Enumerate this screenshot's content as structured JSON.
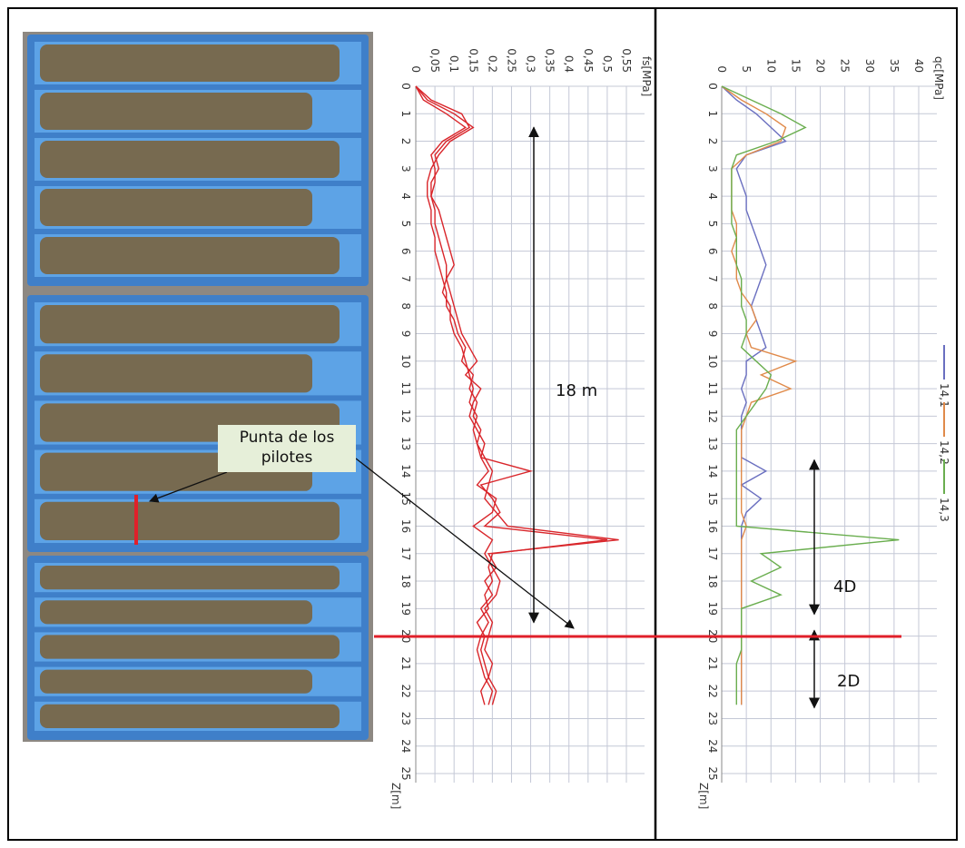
{
  "chart_data": [
    {
      "type": "line",
      "y_label": "fs[MPa]",
      "x_label": "Z[m]",
      "x": [
        0,
        0.5,
        1,
        1.5,
        2,
        2.5,
        3,
        3.5,
        4,
        4.5,
        5,
        5.5,
        6,
        6.5,
        7,
        7.5,
        8,
        8.5,
        9,
        9.5,
        10,
        10.5,
        11,
        11.5,
        12,
        12.5,
        13,
        13.5,
        14,
        14.5,
        15,
        15.5,
        16,
        16.5,
        17,
        17.5,
        18,
        18.5,
        19,
        19.5,
        20,
        20.5,
        21,
        21.5,
        22,
        22.5
      ],
      "xlim": [
        0,
        25
      ],
      "xticks": [
        0,
        1,
        2,
        3,
        4,
        5,
        6,
        7,
        8,
        9,
        10,
        11,
        12,
        13,
        14,
        15,
        16,
        17,
        18,
        19,
        20,
        21,
        22,
        23,
        24,
        25
      ],
      "ylim": [
        0,
        0.55
      ],
      "yticks": [
        0,
        {
          "value": 0.05,
          "label": "0,05"
        },
        {
          "value": 0.1,
          "label": "0,1"
        },
        {
          "value": 0.15,
          "label": "0,15"
        },
        {
          "value": 0.2,
          "label": "0,2"
        },
        {
          "value": 0.25,
          "label": "0,25"
        },
        {
          "value": 0.3,
          "label": "0,3"
        },
        {
          "value": 0.35,
          "label": "0,35"
        },
        {
          "value": 0.4,
          "label": "0,4"
        },
        {
          "value": 0.45,
          "label": "0,45"
        },
        {
          "value": 0.5,
          "label": "0,5"
        },
        {
          "value": 0.55,
          "label": "0,55"
        }
      ],
      "grid": true,
      "series": [
        {
          "color": "#d9262b",
          "values": [
            0,
            0.02,
            0.08,
            0.13,
            0.07,
            0.04,
            0.05,
            0.05,
            0.04,
            0.05,
            0.05,
            0.06,
            0.07,
            0.08,
            0.08,
            0.07,
            0.09,
            0.09,
            0.1,
            0.12,
            0.13,
            0.14,
            0.15,
            0.14,
            0.16,
            0.15,
            0.16,
            0.17,
            0.3,
            0.17,
            0.2,
            0.22,
            0.18,
            0.5,
            0.2,
            0.19,
            0.2,
            0.18,
            0.19,
            0.16,
            0.18,
            0.17,
            0.18,
            0.19,
            0.17,
            0.18
          ]
        },
        {
          "color": "#d9262b",
          "values": [
            0,
            0.03,
            0.1,
            0.15,
            0.09,
            0.06,
            0.04,
            0.03,
            0.03,
            0.04,
            0.04,
            0.05,
            0.05,
            0.06,
            0.07,
            0.08,
            0.08,
            0.1,
            0.11,
            0.13,
            0.12,
            0.15,
            0.14,
            0.16,
            0.15,
            0.17,
            0.16,
            0.18,
            0.2,
            0.19,
            0.18,
            0.21,
            0.24,
            0.53,
            0.19,
            0.21,
            0.18,
            0.2,
            0.17,
            0.19,
            0.17,
            0.16,
            0.17,
            0.18,
            0.2,
            0.19
          ]
        },
        {
          "color": "#d9262b",
          "values": [
            0,
            0.04,
            0.12,
            0.14,
            0.08,
            0.05,
            0.06,
            0.04,
            0.04,
            0.06,
            0.07,
            0.08,
            0.09,
            0.1,
            0.08,
            0.09,
            0.1,
            0.11,
            0.12,
            0.14,
            0.16,
            0.13,
            0.17,
            0.15,
            0.14,
            0.16,
            0.18,
            0.17,
            0.19,
            0.16,
            0.21,
            0.2,
            0.15,
            0.2,
            0.18,
            0.2,
            0.22,
            0.21,
            0.18,
            0.2,
            0.19,
            0.18,
            0.2,
            0.19,
            0.21,
            0.2
          ]
        }
      ],
      "annotations": [
        "18 m",
        "Punta de los pilotes"
      ]
    },
    {
      "type": "line",
      "y_label": "qc[MPa]",
      "x_label": "Z[m]",
      "x": [
        0,
        0.5,
        1,
        1.5,
        2,
        2.5,
        3,
        3.5,
        4,
        4.5,
        5,
        5.5,
        6,
        6.5,
        7,
        7.5,
        8,
        8.5,
        9,
        9.5,
        10,
        10.5,
        11,
        11.5,
        12,
        12.5,
        13,
        13.5,
        14,
        14.5,
        15,
        15.5,
        16,
        16.5,
        17,
        17.5,
        18,
        18.5,
        19,
        19.5,
        20,
        20.5,
        21,
        21.5,
        22,
        22.5
      ],
      "xlim": [
        0,
        25
      ],
      "xticks": [
        0,
        1,
        2,
        3,
        4,
        5,
        6,
        7,
        8,
        9,
        10,
        11,
        12,
        13,
        14,
        15,
        16,
        17,
        18,
        19,
        20,
        21,
        22,
        23,
        24,
        25
      ],
      "ylim": [
        0,
        40
      ],
      "yticks": [
        0,
        5,
        10,
        15,
        20,
        25,
        30,
        35,
        40
      ],
      "grid": true,
      "series": [
        {
          "name": "14,1",
          "color": "#6a6fc0",
          "values": [
            0,
            3,
            7,
            10,
            13,
            5,
            3,
            4,
            5,
            5,
            6,
            7,
            8,
            9,
            8,
            7,
            6,
            7,
            8,
            9,
            5,
            5,
            4,
            5,
            4,
            4,
            4,
            4,
            9,
            4,
            8,
            5,
            4,
            4,
            4,
            4,
            4,
            4,
            4,
            4,
            4,
            4,
            4,
            4,
            4,
            4
          ]
        },
        {
          "name": "14,2",
          "color": "#e08a4a",
          "values": [
            0,
            4,
            9,
            13,
            12,
            5,
            2,
            2,
            2,
            2,
            3,
            3,
            2,
            3,
            3,
            4,
            6,
            7,
            5,
            6,
            15,
            8,
            14,
            6,
            5,
            4,
            4,
            4,
            4,
            4,
            4,
            4,
            5,
            4,
            4,
            4,
            4,
            4,
            4,
            4,
            4,
            4,
            4,
            4,
            4,
            4
          ]
        },
        {
          "name": "14,3",
          "color": "#6aae4f",
          "values": [
            0,
            6,
            12,
            17,
            11,
            3,
            2,
            2,
            2,
            2,
            2,
            3,
            3,
            3,
            4,
            4,
            4,
            5,
            5,
            4,
            7,
            10,
            9,
            7,
            5,
            3,
            3,
            3,
            3,
            3,
            3,
            3,
            3,
            36,
            8,
            12,
            6,
            12,
            4,
            4,
            4,
            4,
            3,
            3,
            3,
            3
          ]
        }
      ],
      "annotations": [
        "4D",
        "2D"
      ]
    }
  ]
}
